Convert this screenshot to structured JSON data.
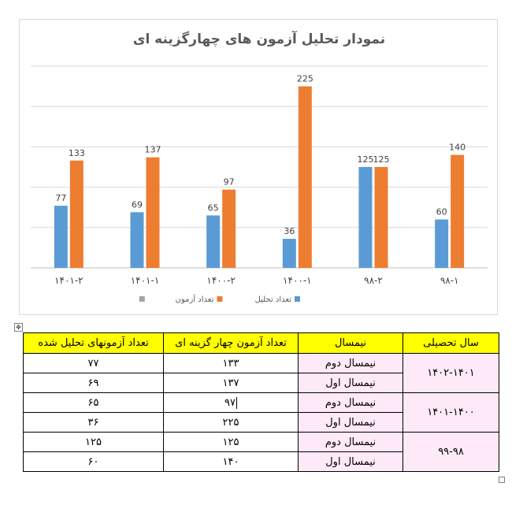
{
  "chart_data": {
    "type": "bar",
    "title": "نمودار تحلیل آزمون های چهارگزینه ای",
    "categories": [
      "۹۸-۱",
      "۹۸-۲",
      "۱۴۰۰-۱",
      "۱۴۰۰-۲",
      "۱۴۰۱-۱",
      "۱۴۰۱-۲"
    ],
    "series": [
      {
        "name": "تعداد تحلیل",
        "color": "#5b9bd5",
        "values": [
          60,
          125,
          36,
          65,
          69,
          77
        ]
      },
      {
        "name": "تعداد آزمون",
        "color": "#ed7d31",
        "values": [
          140,
          125,
          225,
          97,
          137,
          133
        ]
      },
      {
        "name": "",
        "color": "#a5a5a5",
        "values": [
          null,
          null,
          null,
          null,
          null,
          null
        ]
      }
    ],
    "ylim": [
      0,
      250
    ],
    "gridlines": true,
    "category_order": "right-to-left",
    "legend_position": "bottom"
  },
  "table": {
    "headers": [
      "سال تحصیلی",
      "نیمسال",
      "تعداد آزمون  چهار گزینه ای",
      "تعداد آزمونهای تحلیل شده"
    ],
    "rows": [
      {
        "year": "۱۴۰۲-۱۴۰۱",
        "semester": "نیمسال دوم",
        "exams": "۱۳۳",
        "analyzed": "۷۷"
      },
      {
        "year": "",
        "semester": "نیمسال اول",
        "exams": "۱۳۷",
        "analyzed": "۶۹"
      },
      {
        "year": "۱۴۰۱-۱۴۰۰",
        "semester": "نیمسال دوم",
        "exams": "۹۷",
        "analyzed": "۶۵"
      },
      {
        "year": "",
        "semester": "نیمسال اول",
        "exams": "۲۲۵",
        "analyzed": "۳۶"
      },
      {
        "year": "۹۹-۹۸",
        "semester": "نیمسال دوم",
        "exams": "۱۲۵",
        "analyzed": "۱۲۵"
      },
      {
        "year": "",
        "semester": "نیمسال اول",
        "exams": "۱۴۰",
        "analyzed": "۶۰"
      }
    ]
  }
}
